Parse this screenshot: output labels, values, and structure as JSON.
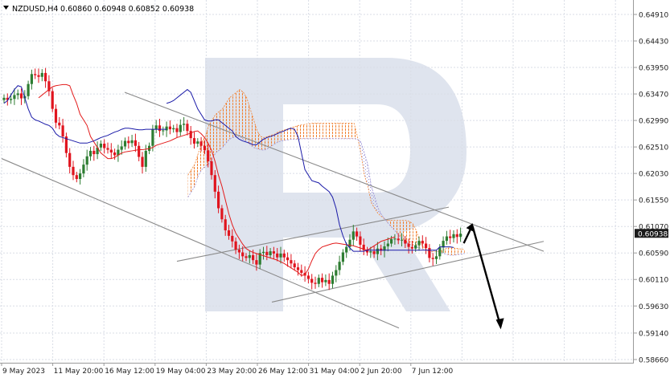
{
  "header": {
    "symbol": "NZDUSD,H4",
    "ohlc": "0.60860 0.60948 0.60852 0.60938"
  },
  "colors": {
    "bull": "#2e7d32",
    "bear": "#e0141e",
    "tenkan": "#e31b1b",
    "kijun": "#1a1aa8",
    "cloud_bull": "#f08030",
    "cloud_bear": "#9a8fd6",
    "channel": "#8a8a8a",
    "grid": "#d9dde6",
    "arrow": "#000000",
    "price_tag_bg": "#1a1a1a",
    "watermark": "#dfe4ee"
  },
  "chart_data": {
    "type": "candlestick",
    "title": "NZDUSD,H4",
    "y_ticks": [
      "0.64910",
      "0.64430",
      "0.63950",
      "0.63470",
      "0.62990",
      "0.62510",
      "0.62030",
      "0.61550",
      "0.61070",
      "0.60590",
      "0.60110",
      "0.59630",
      "0.59140",
      "0.58660"
    ],
    "x_ticks": [
      "9 May 2023",
      "11 May 20:00",
      "16 May 12:00",
      "19 May 04:00",
      "23 May 20:00",
      "26 May 12:00",
      "31 May 04:00",
      "2 Jun 20:00",
      "7 Jun 12:00"
    ],
    "ylim": [
      0.5866,
      0.6491
    ],
    "last_price": "0.60938",
    "candles_close": [
      0.634,
      0.6336,
      0.6338,
      0.6345,
      0.6348,
      0.6339,
      0.6343,
      0.6365,
      0.6383,
      0.6381,
      0.6378,
      0.6385,
      0.637,
      0.6352,
      0.632,
      0.6295,
      0.629,
      0.627,
      0.624,
      0.6215,
      0.62,
      0.6193,
      0.6203,
      0.6219,
      0.6234,
      0.6244,
      0.6238,
      0.625,
      0.6257,
      0.6249,
      0.6246,
      0.6241,
      0.6236,
      0.6246,
      0.6252,
      0.6262,
      0.6258,
      0.6263,
      0.6253,
      0.6233,
      0.6215,
      0.6244,
      0.6253,
      0.6283,
      0.629,
      0.628,
      0.6281,
      0.6288,
      0.6283,
      0.6285,
      0.6278,
      0.6291,
      0.6293,
      0.628,
      0.6267,
      0.6257,
      0.6261,
      0.6253,
      0.6245,
      0.6225,
      0.62,
      0.617,
      0.614,
      0.612,
      0.61,
      0.609,
      0.608,
      0.6065,
      0.606,
      0.6053,
      0.605,
      0.6055,
      0.6046,
      0.6038,
      0.6059,
      0.6061,
      0.6055,
      0.6062,
      0.6058,
      0.6051,
      0.6058,
      0.6051,
      0.6046,
      0.604,
      0.6033,
      0.6028,
      0.6023,
      0.6018,
      0.6012,
      0.6005,
      0.6003,
      0.6014,
      0.6006,
      0.601,
      0.6003,
      0.6018,
      0.6028,
      0.6043,
      0.606,
      0.607,
      0.6083,
      0.6098,
      0.6089,
      0.6074,
      0.6064,
      0.606,
      0.6062,
      0.6057,
      0.6067,
      0.6063,
      0.6071,
      0.6076,
      0.6084,
      0.6085,
      0.6082,
      0.6083,
      0.6076,
      0.607,
      0.6067,
      0.6073,
      0.6081,
      0.6076,
      0.6068,
      0.605,
      0.6048,
      0.6053,
      0.6069,
      0.6081,
      0.6089,
      0.6086,
      0.6093,
      0.6088,
      0.6094
    ],
    "tenkan": [
      0.634,
      0.6345,
      0.635,
      0.6355,
      0.636,
      0.6362,
      0.6363,
      0.6364,
      0.6364,
      0.6362,
      0.6345,
      0.633,
      0.631,
      0.63,
      0.629,
      0.627,
      0.626,
      0.625,
      0.624,
      0.6235,
      0.623,
      0.623,
      0.6232,
      0.6236,
      0.624,
      0.6242,
      0.6243,
      0.6244,
      0.6245,
      0.6246,
      0.6246,
      0.6247,
      0.6248,
      0.625,
      0.6254,
      0.6256,
      0.6258,
      0.626,
      0.6262,
      0.6265,
      0.6268,
      0.627,
      0.6272,
      0.6274,
      0.6276,
      0.6279,
      0.628,
      0.6275,
      0.6268,
      0.6258,
      0.6245,
      0.6225,
      0.62,
      0.618,
      0.6155,
      0.613,
      0.611,
      0.6095,
      0.6085,
      0.6075,
      0.6067,
      0.6063,
      0.606,
      0.6058,
      0.6056,
      0.6054,
      0.6052,
      0.605,
      0.6048,
      0.6046,
      0.6043,
      0.604,
      0.6036,
      0.6032,
      0.6028,
      0.6024,
      0.6018,
      0.602,
      0.603,
      0.6045,
      0.6058,
      0.6065,
      0.607,
      0.6072,
      0.6074,
      0.6076,
      0.6077,
      0.6076,
      0.6075,
      0.6074,
      0.6073,
      0.6072,
      0.607,
      0.6068,
      0.6066,
      0.6064,
      0.6068,
      0.6072,
      0.6076,
      0.608,
      0.6082,
      0.6084,
      0.6086,
      0.6088
    ],
    "kijun": [
      0.633,
      0.6332,
      0.6335,
      0.634,
      0.6345,
      0.635,
      0.6355,
      0.635,
      0.6335,
      0.632,
      0.631,
      0.63,
      0.6298,
      0.6298,
      0.63,
      0.63,
      0.6295,
      0.629,
      0.6285,
      0.628,
      0.627,
      0.6265,
      0.6262,
      0.626,
      0.6258,
      0.6255,
      0.6255,
      0.626,
      0.6265,
      0.6268,
      0.627,
      0.6272,
      0.6275,
      0.6278,
      0.628,
      0.6283,
      0.6285,
      0.6283,
      0.627,
      0.624,
      0.621,
      0.62,
      0.619,
      0.6188,
      0.6186,
      0.618,
      0.6175,
      0.617,
      0.616,
      0.614,
      0.611,
      0.609,
      0.6075,
      0.6068,
      0.6062,
      0.6062,
      0.6062,
      0.6062,
      0.6064,
      0.6064,
      0.6064,
      0.6064,
      0.6064,
      0.6064,
      0.6064,
      0.6064,
      0.6064,
      0.6064,
      0.6064,
      0.6064,
      0.6064,
      0.6064,
      0.6064,
      0.6064,
      0.6064,
      0.6064,
      0.6064,
      0.6064,
      0.6064,
      0.607,
      0.607,
      0.607,
      0.607,
      0.6069
    ],
    "cloud_a": [
      0.62,
      0.621,
      0.622,
      0.624,
      0.626,
      0.627,
      0.629,
      0.63,
      0.631,
      0.6315,
      0.632,
      0.633,
      0.634,
      0.6345,
      0.635,
      0.6355,
      0.635,
      0.634,
      0.632,
      0.63,
      0.628,
      0.627,
      0.6268,
      0.627,
      0.6272,
      0.6274,
      0.6278,
      0.628,
      0.6282,
      0.6284,
      0.6286,
      0.6288,
      0.629,
      0.6291,
      0.6292,
      0.6293,
      0.6294,
      0.6294,
      0.6294,
      0.6294,
      0.6294,
      0.6294,
      0.6294,
      0.6294,
      0.6294,
      0.6294,
      0.6294,
      0.6294,
      0.6294,
      0.627,
      0.624,
      0.62,
      0.618,
      0.615,
      0.614,
      0.613,
      0.6125,
      0.612,
      0.6118,
      0.6118,
      0.6118,
      0.6118,
      0.6118,
      0.6118,
      0.6116,
      0.6112,
      0.61,
      0.608,
      0.607,
      0.6065,
      0.606,
      0.6062,
      0.6062,
      0.6062,
      0.6065,
      0.6068,
      0.6068,
      0.6068,
      0.6067,
      0.6066,
      0.6065
    ],
    "cloud_b": [
      0.616,
      0.617,
      0.618,
      0.62,
      0.621,
      0.6215,
      0.622,
      0.623,
      0.624,
      0.6245,
      0.625,
      0.6258,
      0.6265,
      0.6268,
      0.627,
      0.627,
      0.6265,
      0.626,
      0.6255,
      0.625,
      0.6248,
      0.6246,
      0.6245,
      0.6248,
      0.6252,
      0.6256,
      0.626,
      0.6262,
      0.6263,
      0.6264,
      0.6265,
      0.6265,
      0.6265,
      0.6266,
      0.6266,
      0.6266,
      0.6266,
      0.6266,
      0.6266,
      0.6266,
      0.6266,
      0.6266,
      0.6266,
      0.6266,
      0.6266,
      0.6266,
      0.6266,
      0.6266,
      0.6266,
      0.6265,
      0.626,
      0.624,
      0.622,
      0.618,
      0.616,
      0.614,
      0.6128,
      0.612,
      0.6112,
      0.6105,
      0.6098,
      0.609,
      0.6082,
      0.6078,
      0.6075,
      0.6072,
      0.607,
      0.6068,
      0.6066,
      0.6065,
      0.6064,
      0.6063,
      0.6062,
      0.606,
      0.6058,
      0.6056,
      0.6055,
      0.6055,
      0.6056,
      0.6057,
      0.6058
    ],
    "trendlines": [
      {
        "from": [
          "9 May 2023",
          0.623
        ],
        "to": [
          "2 Jun 20:00",
          0.5923
        ]
      },
      {
        "from": [
          "16 May 12:00",
          0.635
        ],
        "to": [
          "7 Jun 12:00",
          0.6062
        ]
      },
      {
        "from": [
          "23 May 20:00",
          0.6044
        ],
        "to": [
          "7 Jun 12:00",
          0.6142
        ]
      },
      {
        "from": [
          "31 May 04:00",
          0.597
        ],
        "to": [
          "7 Jun 12:00",
          0.608
        ]
      }
    ],
    "forecast_arrows": [
      {
        "from": 0.6094,
        "to": 0.611
      },
      {
        "from": 0.611,
        "to": 0.5925
      }
    ]
  }
}
